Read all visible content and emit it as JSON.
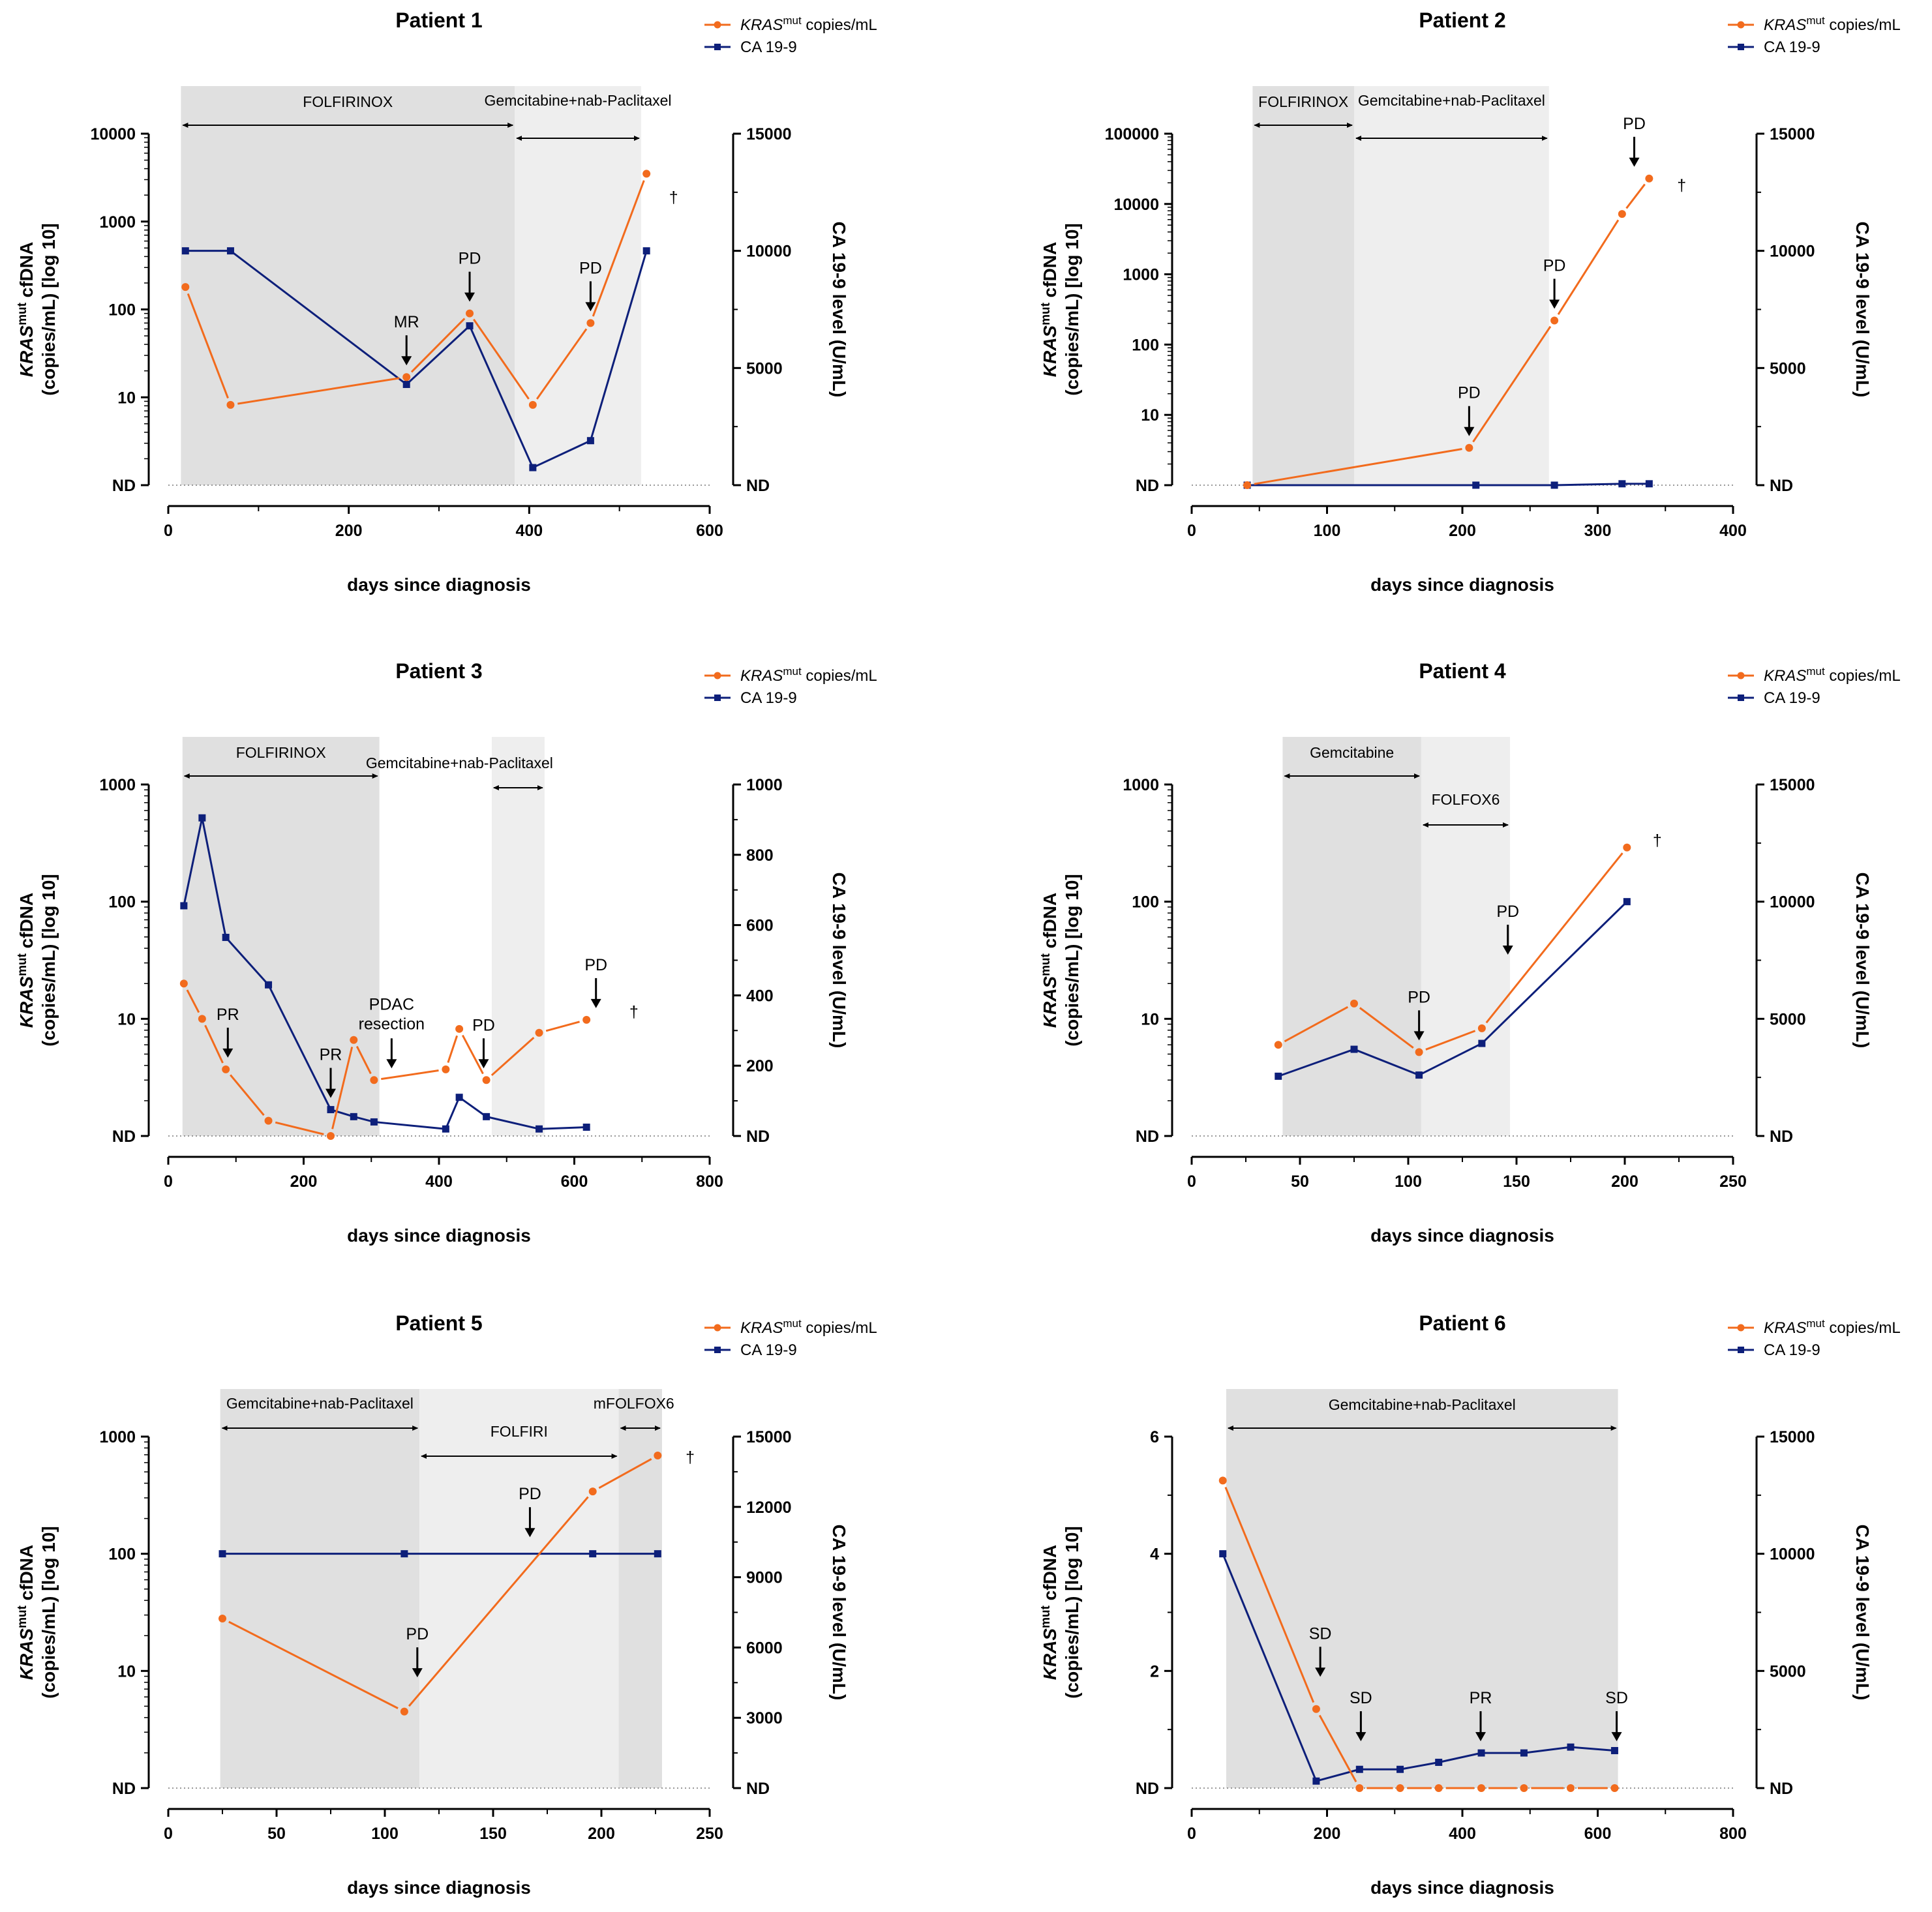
{
  "figure": {
    "orange": "#f26b1d",
    "navy": "#0d1f7a",
    "shade_dark": "#e0e0e0",
    "shade_light": "#eeeeee"
  },
  "chart_data": [
    {
      "type": "line",
      "title": "Patient 1",
      "xlabel": "days since diagnosis",
      "ylabel_left": [
        "KRAS",
        "mut",
        " cfDNA",
        "(copies/mL) [log 10]"
      ],
      "ylabel_right": "CA 19-9 level (U/mL)",
      "legend": [
        "KRAS",
        "mut",
        " copies/mL",
        "CA 19-9"
      ],
      "xlim": [
        0,
        600
      ],
      "x_ticks": [
        0,
        200,
        400,
        600
      ],
      "left_axis": {
        "scale": "log",
        "ticks": [
          10000,
          1000,
          100,
          10
        ],
        "tick_labels": [
          "10000",
          "1000",
          "100",
          "10"
        ],
        "nd_label": "ND",
        "nd_value": 1,
        "max": 10000
      },
      "right_axis": {
        "ticks": [
          15000,
          10000,
          5000
        ],
        "tick_labels": [
          "15000",
          "10000",
          "5000"
        ],
        "nd_label": "ND",
        "max": 15000
      },
      "regimens": [
        {
          "name": "FOLFIRINOX",
          "x_start": 14,
          "x_end": 384,
          "shade": "dark"
        },
        {
          "name": "Gemcitabine+nab-Paclitaxel",
          "x_start": 384,
          "x_end": 524,
          "shade": "light"
        }
      ],
      "kras": {
        "name": "KRAS mut copies/mL",
        "x": [
          19,
          69,
          264,
          334,
          404,
          468,
          530
        ],
        "y": [
          180,
          8.2,
          17,
          90,
          8.2,
          70,
          3500
        ]
      },
      "ca199": {
        "name": "CA 19-9",
        "x": [
          19,
          69,
          264,
          334,
          404,
          468,
          530
        ],
        "y": [
          10000,
          10000,
          4300,
          6800,
          750,
          1900,
          10000
        ]
      },
      "events": [
        {
          "label": "MR",
          "x": 264,
          "series": "kras",
          "y": 17
        },
        {
          "label": "PD",
          "x": 334,
          "series": "kras",
          "y": 90
        },
        {
          "label": "PD",
          "x": 468,
          "series": "kras",
          "y": 70
        }
      ],
      "death": {
        "symbol": "†",
        "x": 560,
        "y": 2000
      }
    },
    {
      "type": "line",
      "title": "Patient 2",
      "xlabel": "days since diagnosis",
      "ylabel_left": [
        "KRAS",
        "mut",
        " cfDNA",
        "(copies/mL) [log 10]"
      ],
      "ylabel_right": "CA 19-9 level (U/mL)",
      "legend": [
        "KRAS",
        "mut",
        " copies/mL",
        "CA 19-9"
      ],
      "xlim": [
        0,
        400
      ],
      "x_ticks": [
        0,
        100,
        200,
        300,
        400
      ],
      "left_axis": {
        "scale": "log",
        "ticks": [
          100000,
          10000,
          1000,
          100,
          10
        ],
        "tick_labels": [
          "100000",
          "10000",
          "1000",
          "100",
          "10"
        ],
        "nd_label": "ND",
        "nd_value": 1,
        "max": 100000
      },
      "right_axis": {
        "ticks": [
          15000,
          10000,
          5000
        ],
        "tick_labels": [
          "15000",
          "10000",
          "5000"
        ],
        "nd_label": "ND",
        "max": 15000
      },
      "regimens": [
        {
          "name": "FOLFIRINOX",
          "x_start": 45,
          "x_end": 120,
          "shade": "dark"
        },
        {
          "name": "Gemcitabine+nab-Paclitaxel",
          "x_start": 120,
          "x_end": 264,
          "shade": "light"
        }
      ],
      "kras": {
        "name": "KRAS mut copies/mL",
        "x": [
          41,
          205,
          268,
          318,
          338
        ],
        "y": [
          1,
          3.4,
          220,
          7200,
          23000
        ]
      },
      "ca199": {
        "name": "CA 19-9",
        "x": [
          41,
          210,
          268,
          318,
          338
        ],
        "y": [
          0,
          0,
          0,
          60,
          60
        ]
      },
      "events": [
        {
          "label": "PD",
          "x": 205,
          "series": "kras",
          "y": 3.4
        },
        {
          "label": "PD",
          "x": 268,
          "series": "kras",
          "y": 220
        },
        {
          "label": "PD",
          "x": 327,
          "series": "kras",
          "y": 23000
        }
      ],
      "death": {
        "symbol": "†",
        "x": 362,
        "y": 20000
      }
    },
    {
      "type": "line",
      "title": "Patient 3",
      "xlabel": "days since diagnosis",
      "ylabel_left": [
        "KRAS",
        "mut",
        " cfDNA",
        "(copies/mL) [log 10]"
      ],
      "ylabel_right": "CA 19-9 level (U/mL)",
      "legend": [
        "KRAS",
        "mut",
        " copies/mL",
        "CA 19-9"
      ],
      "xlim": [
        0,
        800
      ],
      "x_ticks": [
        0,
        200,
        400,
        600,
        800
      ],
      "left_axis": {
        "scale": "log",
        "ticks": [
          1000,
          100,
          10
        ],
        "tick_labels": [
          "1000",
          "100",
          "10"
        ],
        "nd_label": "ND",
        "nd_value": 1,
        "max": 1000
      },
      "right_axis": {
        "ticks": [
          1000,
          800,
          600,
          400,
          200
        ],
        "tick_labels": [
          "1000",
          "800",
          "600",
          "400",
          "200"
        ],
        "nd_label": "ND",
        "max": 1000
      },
      "regimens": [
        {
          "name": "FOLFIRINOX",
          "x_start": 21,
          "x_end": 312,
          "shade": "dark"
        },
        {
          "name": "Gemcitabine+nab-Paclitaxel",
          "x_start": 478,
          "x_end": 556,
          "shade": "light"
        }
      ],
      "kras": {
        "name": "KRAS mut copies/mL",
        "x": [
          23,
          50,
          85,
          148,
          240,
          274,
          304,
          410,
          430,
          470,
          548,
          618
        ],
        "y": [
          20,
          10,
          3.7,
          1.35,
          1,
          6.6,
          3,
          3.7,
          8.2,
          3,
          7.6,
          9.8
        ]
      },
      "ca199": {
        "name": "CA 19-9",
        "x": [
          23,
          50,
          85,
          148,
          240,
          274,
          304,
          410,
          430,
          470,
          548,
          618
        ],
        "y": [
          655,
          905,
          565,
          430,
          75,
          55,
          40,
          20,
          110,
          55,
          20,
          25
        ]
      },
      "events": [
        {
          "label": "PR",
          "x": 88,
          "series": "kras",
          "y": 3.7
        },
        {
          "label": "PR",
          "x": 240,
          "series": "ca199",
          "y": 75
        },
        {
          "label": "PDAC",
          "label2": "resection",
          "x": 330,
          "series": "kras",
          "y": 3
        },
        {
          "label": "PD",
          "x": 466,
          "series": "kras",
          "y": 3
        },
        {
          "label": "PD",
          "x": 632,
          "series": "kras",
          "y": 9.8
        }
      ],
      "death": {
        "symbol": "†",
        "x": 688,
        "y": 12
      }
    },
    {
      "type": "line",
      "title": "Patient 4",
      "xlabel": "days since diagnosis",
      "ylabel_left": [
        "KRAS",
        "mut",
        " cfDNA",
        "(copies/mL) [log 10]"
      ],
      "ylabel_right": "CA 19-9 level (U/mL)",
      "legend": [
        "KRAS",
        "mut",
        " copies/mL",
        "CA 19-9"
      ],
      "xlim": [
        0,
        250
      ],
      "x_ticks": [
        0,
        50,
        100,
        150,
        200,
        250
      ],
      "left_axis": {
        "scale": "log",
        "ticks": [
          1000,
          100,
          10
        ],
        "tick_labels": [
          "1000",
          "100",
          "10"
        ],
        "nd_label": "ND",
        "nd_value": 1,
        "max": 1000
      },
      "right_axis": {
        "ticks": [
          15000,
          10000,
          5000
        ],
        "tick_labels": [
          "15000",
          "10000",
          "5000"
        ],
        "nd_label": "ND",
        "max": 15000
      },
      "regimens": [
        {
          "name": "Gemcitabine",
          "x_start": 42,
          "x_end": 106,
          "shade": "dark"
        },
        {
          "name": "FOLFOX6",
          "x_start": 106,
          "x_end": 147,
          "shade": "light"
        }
      ],
      "kras": {
        "name": "KRAS mut copies/mL",
        "x": [
          40,
          75,
          105,
          134,
          201
        ],
        "y": [
          6,
          13.5,
          5.2,
          8.3,
          290
        ]
      },
      "ca199": {
        "name": "CA 19-9",
        "x": [
          40,
          75,
          105,
          134,
          201
        ],
        "y": [
          2550,
          3700,
          2600,
          3950,
          10000
        ]
      },
      "events": [
        {
          "label": "PD",
          "x": 105,
          "series": "kras",
          "y": 5.2
        },
        {
          "label": "PD",
          "x": 146,
          "series": "kras",
          "y": 28
        }
      ],
      "death": {
        "symbol": "†",
        "x": 215,
        "y": 350
      }
    },
    {
      "type": "line",
      "title": "Patient 5",
      "xlabel": "days since diagnosis",
      "ylabel_left": [
        "KRAS",
        "mut",
        " cfDNA",
        "(copies/mL) [log 10]"
      ],
      "ylabel_right": "CA 19-9 level (U/mL)",
      "legend": [
        "KRAS",
        "mut",
        " copies/mL",
        "CA 19-9"
      ],
      "xlim": [
        0,
        250
      ],
      "x_ticks": [
        0,
        50,
        100,
        150,
        200,
        250
      ],
      "left_axis": {
        "scale": "log",
        "ticks": [
          1000,
          100,
          10
        ],
        "tick_labels": [
          "1000",
          "100",
          "10"
        ],
        "nd_label": "ND",
        "nd_value": 1,
        "max": 1000
      },
      "right_axis": {
        "ticks": [
          15000,
          12000,
          9000,
          6000,
          3000
        ],
        "tick_labels": [
          "15000",
          "12000",
          "9000",
          "6000",
          "3000"
        ],
        "nd_label": "ND",
        "max": 15000
      },
      "regimens": [
        {
          "name": "Gemcitabine+nab-Paclitaxel",
          "x_start": 24,
          "x_end": 116,
          "shade": "dark"
        },
        {
          "name": "FOLFIRI",
          "x_start": 116,
          "x_end": 208,
          "shade": "light"
        },
        {
          "name": "mFOLFOX6",
          "x_start": 208,
          "x_end": 228,
          "shade": "dark"
        }
      ],
      "kras": {
        "name": "KRAS mut copies/mL",
        "x": [
          25,
          109,
          196,
          226
        ],
        "y": [
          28,
          4.5,
          340,
          690
        ]
      },
      "ca199": {
        "name": "CA 19-9",
        "x": [
          25,
          109,
          196,
          226
        ],
        "y": [
          10000,
          10000,
          10000,
          10000
        ]
      },
      "events": [
        {
          "label": "PD",
          "x": 115,
          "series": "kras",
          "y": 7
        },
        {
          "label": "PD",
          "x": 167,
          "series": "kras",
          "y": 110
        }
      ],
      "death": {
        "symbol": "†",
        "x": 241,
        "y": 700
      }
    },
    {
      "type": "line",
      "title": "Patient 6",
      "xlabel": "days since diagnosis",
      "ylabel_left": [
        "KRAS",
        "mut",
        " cfDNA",
        "(copies/mL) [log 10]"
      ],
      "ylabel_right": "CA 19-9 level (U/mL)",
      "legend": [
        "KRAS",
        "mut",
        " copies/mL",
        "CA 19-9"
      ],
      "xlim": [
        0,
        800
      ],
      "x_ticks": [
        0,
        200,
        400,
        600,
        800
      ],
      "left_axis": {
        "scale": "linear",
        "ticks": [
          6,
          4,
          2
        ],
        "tick_labels": [
          "6",
          "4",
          "2"
        ],
        "nd_label": "ND",
        "nd_value": 0,
        "max": 6
      },
      "right_axis": {
        "ticks": [
          15000,
          10000,
          5000
        ],
        "tick_labels": [
          "15000",
          "10000",
          "5000"
        ],
        "nd_label": "ND",
        "max": 15000
      },
      "regimens": [
        {
          "name": "Gemcitabine+nab-Paclitaxel",
          "x_start": 51,
          "x_end": 630,
          "shade": "dark"
        }
      ],
      "kras": {
        "name": "KRAS mut copies/mL",
        "x": [
          46,
          184,
          248,
          308,
          365,
          428,
          491,
          560,
          625
        ],
        "y": [
          5.25,
          1.35,
          0,
          0,
          0,
          0,
          0,
          0,
          0
        ]
      },
      "ca199": {
        "name": "CA 19-9",
        "x": [
          46,
          184,
          248,
          308,
          365,
          428,
          491,
          560,
          625
        ],
        "y": [
          10000,
          300,
          800,
          800,
          1100,
          1500,
          1500,
          1750,
          1600
        ]
      },
      "events": [
        {
          "label": "SD",
          "x": 190,
          "series": "kras",
          "y": 1.7
        },
        {
          "label": "SD",
          "x": 250,
          "series": "kras",
          "y": 0.6
        },
        {
          "label": "PR",
          "x": 427,
          "series": "kras",
          "y": 0.6
        },
        {
          "label": "SD",
          "x": 628,
          "series": "kras",
          "y": 0.6
        }
      ],
      "death": null
    }
  ]
}
